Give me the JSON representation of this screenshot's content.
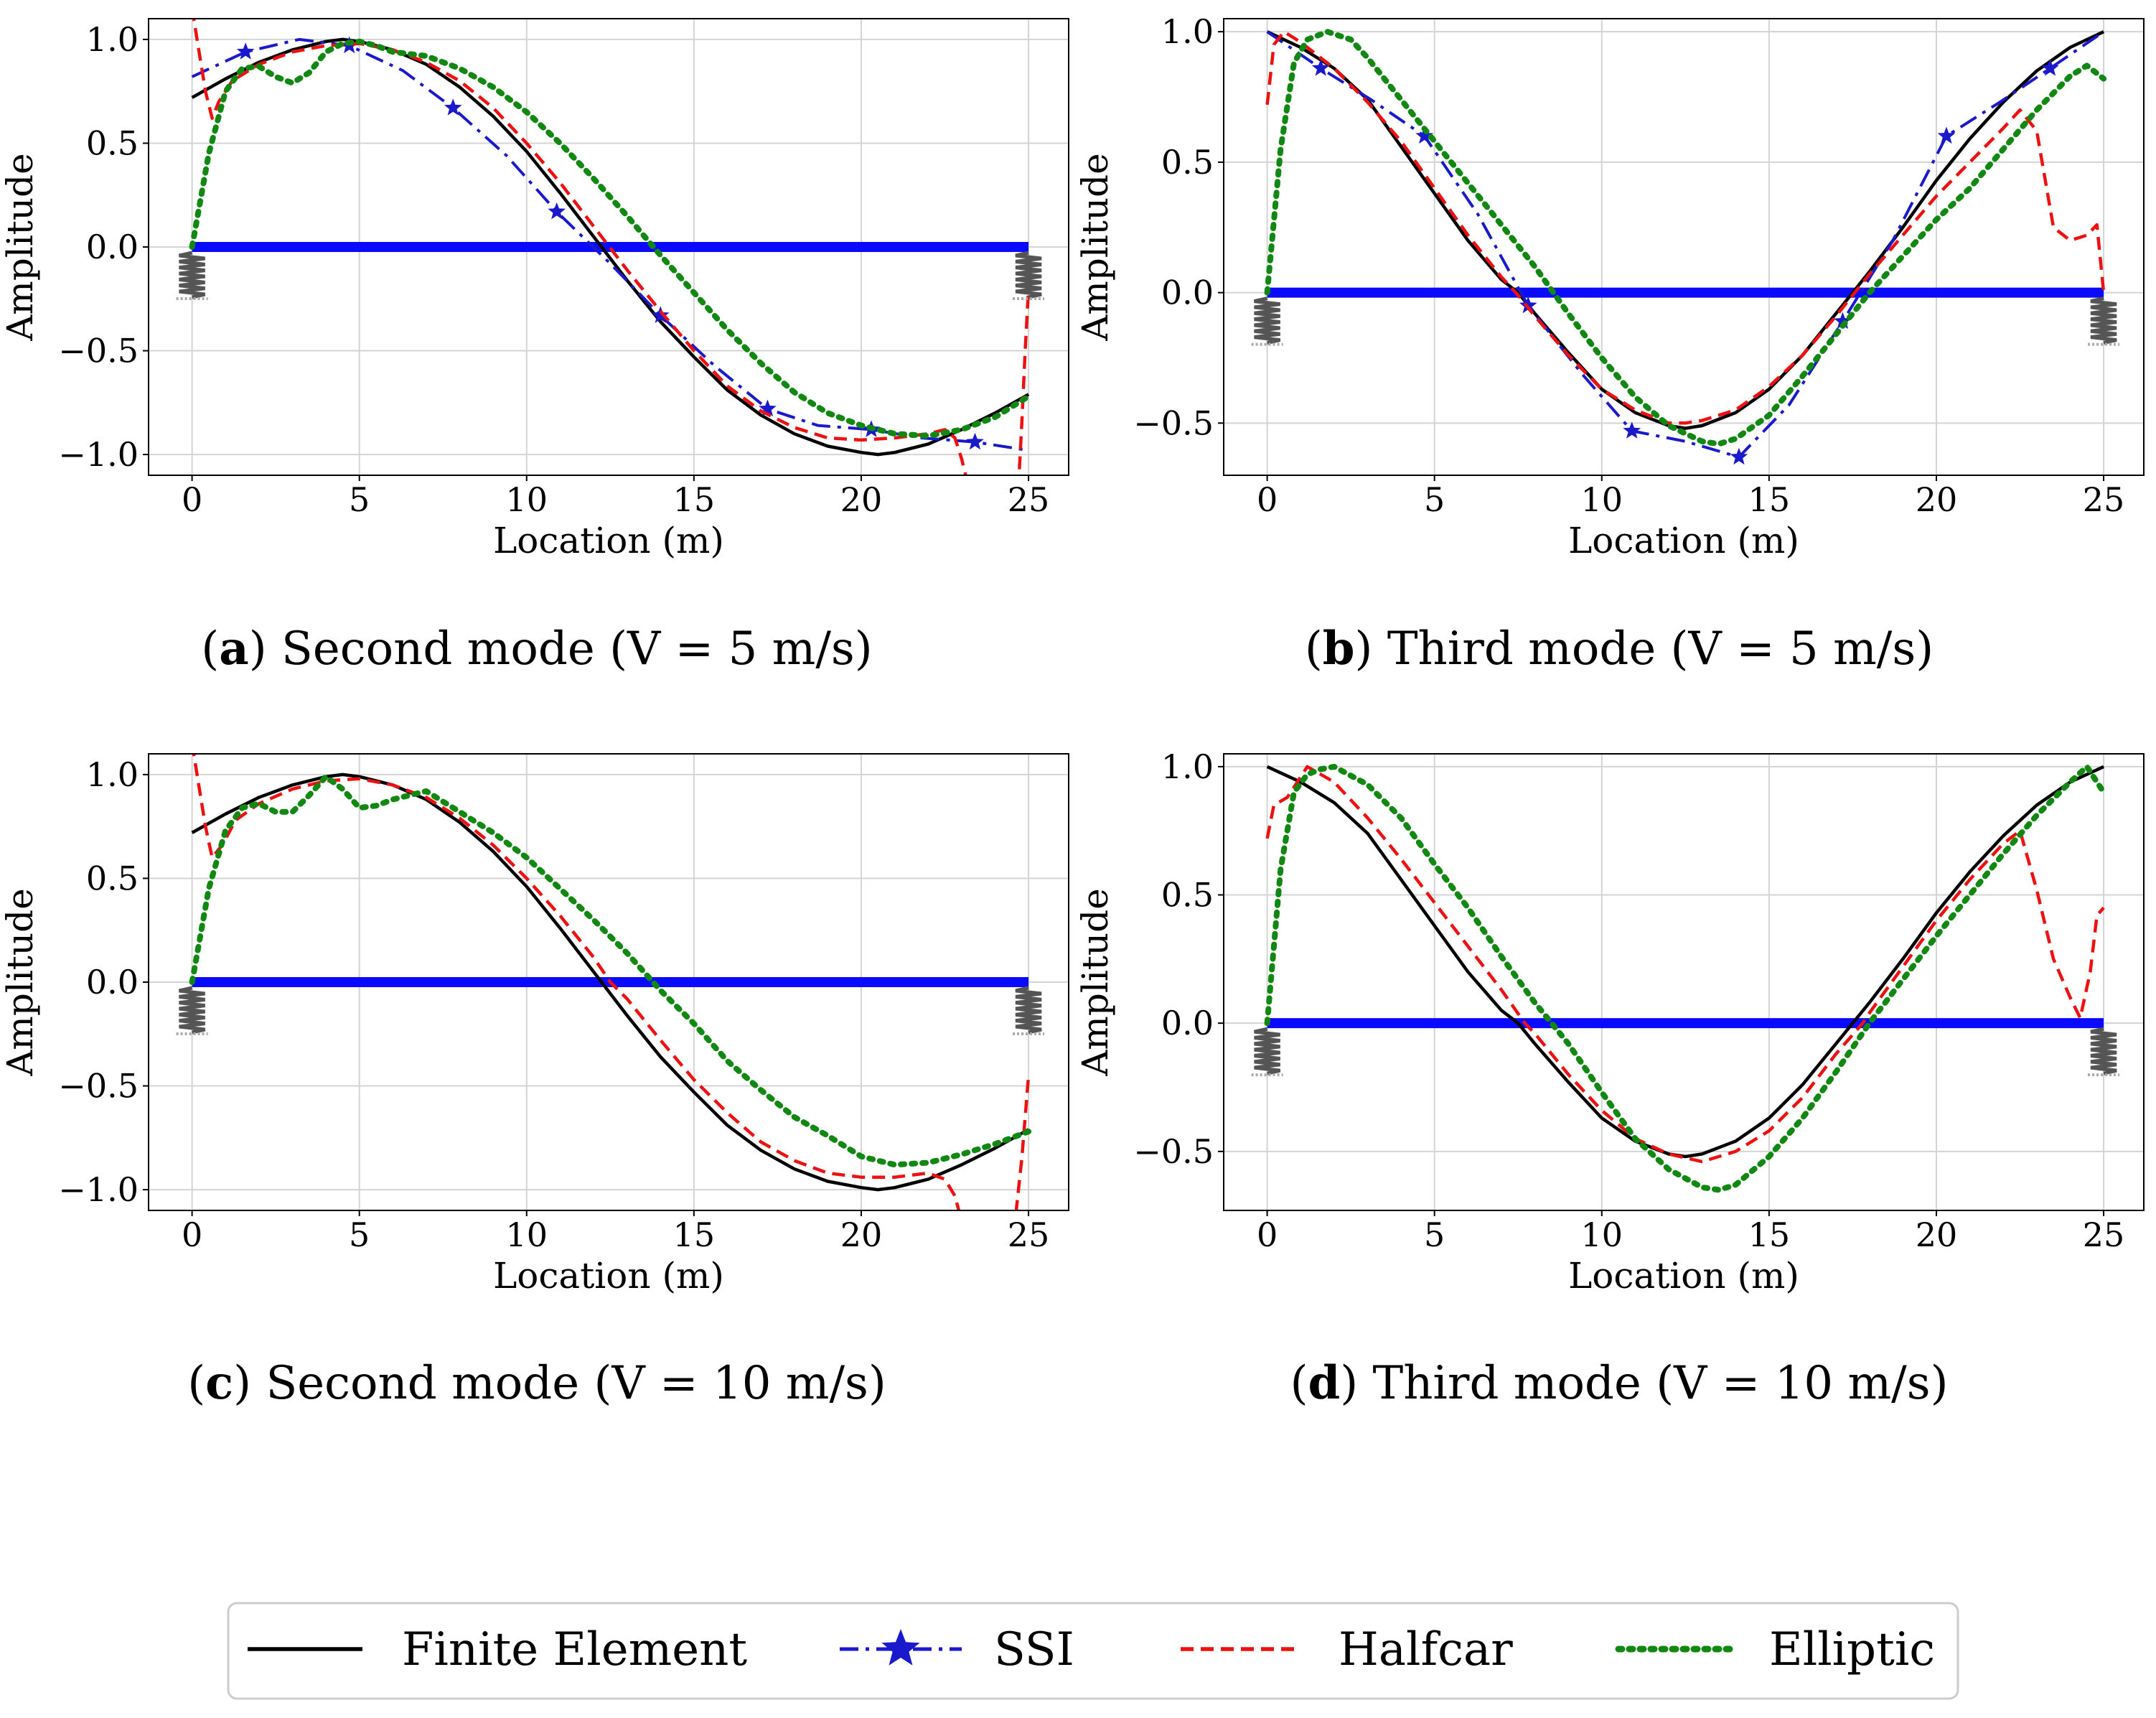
{
  "chart_data": [
    {
      "type": "line",
      "id": "a",
      "caption": {
        "letter": "a",
        "text": " Second mode (V = 5 m/s)"
      },
      "xlabel": "Location (m)",
      "ylabel": "Amplitude",
      "xlim": [
        -1.3,
        26.2
      ],
      "ylim": [
        -1.1,
        1.1
      ],
      "xticks": [
        0,
        5,
        10,
        15,
        20,
        25
      ],
      "yticks": [
        -1.0,
        -0.5,
        0.0,
        0.5,
        1.0
      ],
      "ytick_labels": [
        "−1.0",
        "−0.5",
        "0.0",
        "0.5",
        "1.0"
      ],
      "grid": true,
      "beam": {
        "y": 0.0,
        "x_start": 0,
        "x_end": 25
      },
      "series": [
        {
          "name": "Finite Element",
          "x": [
            0,
            1,
            2,
            3,
            4,
            4.5,
            5,
            6,
            7,
            8,
            9,
            10,
            11,
            12,
            13,
            14,
            15,
            16,
            17,
            18,
            19,
            20,
            20.5,
            21,
            22,
            23,
            24,
            25
          ],
          "y": [
            0.72,
            0.81,
            0.89,
            0.95,
            0.99,
            1.0,
            0.99,
            0.95,
            0.88,
            0.77,
            0.63,
            0.46,
            0.26,
            0.05,
            -0.16,
            -0.36,
            -0.53,
            -0.69,
            -0.81,
            -0.9,
            -0.96,
            -0.99,
            -1.0,
            -0.99,
            -0.95,
            -0.88,
            -0.8,
            -0.71
          ]
        },
        {
          "name": "SSI",
          "x": [
            0,
            1.6,
            3.2,
            4.7,
            6.3,
            7.8,
            9.4,
            10.9,
            12.5,
            14.0,
            15.6,
            17.2,
            18.7,
            20.3,
            21.8,
            23.4,
            25
          ],
          "y": [
            0.82,
            0.94,
            1.0,
            0.97,
            0.85,
            0.67,
            0.44,
            0.17,
            -0.08,
            -0.33,
            -0.57,
            -0.78,
            -0.86,
            -0.88,
            -0.92,
            -0.94,
            -0.98
          ],
          "markers": [
            false,
            true,
            false,
            true,
            false,
            true,
            false,
            true,
            false,
            true,
            false,
            true,
            false,
            true,
            false,
            true,
            false
          ]
        },
        {
          "name": "Halfcar",
          "x": [
            0,
            0.2,
            0.4,
            0.6,
            0.8,
            1.2,
            2,
            3,
            4,
            5,
            6,
            7,
            8,
            9,
            10,
            11,
            12,
            13,
            14,
            15,
            16,
            17,
            18,
            19,
            20,
            21,
            22,
            22.5,
            22.8,
            23.0,
            23.2,
            24.7,
            24.8,
            24.9,
            25.0
          ],
          "y": [
            1.15,
            0.95,
            0.75,
            0.62,
            0.7,
            0.8,
            0.88,
            0.94,
            0.97,
            0.98,
            0.95,
            0.89,
            0.8,
            0.67,
            0.5,
            0.31,
            0.1,
            -0.11,
            -0.31,
            -0.5,
            -0.67,
            -0.79,
            -0.87,
            -0.92,
            -0.93,
            -0.92,
            -0.9,
            -0.88,
            -0.92,
            -1.02,
            -1.15,
            -1.15,
            -0.85,
            -0.5,
            -0.2
          ]
        },
        {
          "name": "Elliptic",
          "x": [
            0,
            0.5,
            1,
            1.5,
            2,
            2.5,
            3,
            3.5,
            4,
            4.5,
            5,
            5.5,
            6,
            7,
            8,
            9,
            10,
            11,
            12,
            13,
            14,
            15,
            16,
            17,
            18,
            19,
            20,
            21,
            22,
            23,
            24,
            25
          ],
          "y": [
            0.0,
            0.45,
            0.75,
            0.86,
            0.87,
            0.82,
            0.79,
            0.84,
            0.94,
            0.98,
            0.99,
            0.97,
            0.94,
            0.92,
            0.86,
            0.77,
            0.65,
            0.5,
            0.33,
            0.15,
            -0.04,
            -0.22,
            -0.4,
            -0.56,
            -0.7,
            -0.8,
            -0.86,
            -0.9,
            -0.91,
            -0.88,
            -0.82,
            -0.72
          ]
        }
      ]
    },
    {
      "type": "line",
      "id": "b",
      "caption": {
        "letter": "b",
        "text": " Third mode (V = 5 m/s)"
      },
      "xlabel": "Location (m)",
      "ylabel": "Amplitude",
      "xlim": [
        -1.3,
        26.2
      ],
      "ylim": [
        -0.7,
        1.05
      ],
      "xticks": [
        0,
        5,
        10,
        15,
        20,
        25
      ],
      "yticks": [
        -0.5,
        0.0,
        0.5,
        1.0
      ],
      "ytick_labels": [
        "−0.5",
        "0.0",
        "0.5",
        "1.0"
      ],
      "grid": true,
      "beam": {
        "y": 0.0,
        "x_start": 0,
        "x_end": 25
      },
      "series": [
        {
          "name": "Finite Element",
          "x": [
            0,
            1,
            2,
            3,
            4,
            5,
            6,
            7,
            7.5,
            8,
            9,
            10,
            11,
            12,
            12.5,
            13,
            14,
            15,
            16,
            17,
            17.5,
            18,
            19,
            20,
            21,
            22,
            23,
            24,
            25
          ],
          "y": [
            1.0,
            0.94,
            0.86,
            0.74,
            0.56,
            0.38,
            0.2,
            0.05,
            0.0,
            -0.08,
            -0.23,
            -0.37,
            -0.46,
            -0.51,
            -0.52,
            -0.51,
            -0.46,
            -0.37,
            -0.24,
            -0.08,
            0.0,
            0.08,
            0.25,
            0.43,
            0.59,
            0.73,
            0.85,
            0.94,
            1.0
          ]
        },
        {
          "name": "SSI",
          "x": [
            0,
            1.6,
            3.1,
            4.7,
            6.3,
            7.8,
            9.4,
            10.9,
            12.5,
            14.1,
            15.6,
            17.2,
            18.7,
            20.3,
            21.9,
            23.4,
            25
          ],
          "y": [
            1.0,
            0.86,
            0.74,
            0.6,
            0.3,
            -0.05,
            -0.31,
            -0.53,
            -0.57,
            -0.63,
            -0.43,
            -0.11,
            0.2,
            0.6,
            0.73,
            0.86,
            1.0
          ],
          "markers": [
            false,
            true,
            false,
            true,
            false,
            true,
            false,
            true,
            false,
            true,
            false,
            true,
            false,
            true,
            false,
            true,
            false
          ]
        },
        {
          "name": "Halfcar",
          "x": [
            0,
            0.2,
            0.5,
            1,
            2,
            3,
            4,
            5,
            6,
            7,
            7.5,
            8,
            9,
            10,
            11,
            12,
            12.5,
            13,
            14,
            15,
            16,
            17,
            17.5,
            18,
            19,
            20,
            21,
            22,
            22.5,
            23,
            23.5,
            24,
            24.5,
            24.8,
            25.0
          ],
          "y": [
            0.72,
            0.95,
            1.0,
            0.96,
            0.86,
            0.73,
            0.58,
            0.4,
            0.22,
            0.06,
            -0.01,
            -0.09,
            -0.24,
            -0.37,
            -0.45,
            -0.5,
            -0.5,
            -0.49,
            -0.45,
            -0.36,
            -0.24,
            -0.09,
            -0.01,
            0.07,
            0.22,
            0.37,
            0.5,
            0.63,
            0.7,
            0.62,
            0.25,
            0.2,
            0.22,
            0.26,
            0.0
          ]
        },
        {
          "name": "Elliptic",
          "x": [
            0,
            0.4,
            0.8,
            1.2,
            1.8,
            2.5,
            3,
            4,
            5,
            6,
            7,
            8,
            9,
            10,
            11,
            12,
            13,
            13.5,
            14,
            15,
            16,
            17,
            18,
            19,
            20,
            21,
            22,
            23,
            24,
            24.5,
            25
          ],
          "y": [
            0.0,
            0.55,
            0.88,
            0.97,
            1.0,
            0.97,
            0.9,
            0.74,
            0.58,
            0.42,
            0.26,
            0.1,
            -0.08,
            -0.25,
            -0.4,
            -0.51,
            -0.57,
            -0.58,
            -0.56,
            -0.47,
            -0.32,
            -0.16,
            0.0,
            0.14,
            0.28,
            0.4,
            0.55,
            0.7,
            0.83,
            0.87,
            0.82
          ]
        }
      ]
    },
    {
      "type": "line",
      "id": "c",
      "caption": {
        "letter": "c",
        "text": " Second mode (V = 10 m/s)"
      },
      "xlabel": "Location (m)",
      "ylabel": "Amplitude",
      "xlim": [
        -1.3,
        26.2
      ],
      "ylim": [
        -1.1,
        1.1
      ],
      "xticks": [
        0,
        5,
        10,
        15,
        20,
        25
      ],
      "yticks": [
        -1.0,
        -0.5,
        0.0,
        0.5,
        1.0
      ],
      "ytick_labels": [
        "−1.0",
        "−0.5",
        "0.0",
        "0.5",
        "1.0"
      ],
      "grid": true,
      "beam": {
        "y": 0.0,
        "x_start": 0,
        "x_end": 25
      },
      "series": [
        {
          "name": "Finite Element",
          "x": [
            0,
            1,
            2,
            3,
            4,
            4.5,
            5,
            6,
            7,
            8,
            9,
            10,
            11,
            12,
            13,
            14,
            15,
            16,
            17,
            18,
            19,
            20,
            20.5,
            21,
            22,
            23,
            24,
            25
          ],
          "y": [
            0.72,
            0.81,
            0.89,
            0.95,
            0.99,
            1.0,
            0.99,
            0.95,
            0.88,
            0.77,
            0.63,
            0.46,
            0.26,
            0.05,
            -0.16,
            -0.36,
            -0.53,
            -0.69,
            -0.81,
            -0.9,
            -0.96,
            -0.99,
            -1.0,
            -0.99,
            -0.95,
            -0.88,
            -0.8,
            -0.71
          ]
        },
        {
          "name": "Halfcar",
          "x": [
            0,
            0.2,
            0.4,
            0.6,
            0.9,
            1.3,
            2,
            3,
            4,
            5,
            6,
            7,
            8,
            9,
            10,
            11,
            12,
            12.5,
            13,
            14,
            15,
            16,
            17,
            18,
            19,
            20,
            21,
            22,
            22.5,
            22.8,
            23.0,
            24.6,
            24.8,
            25.0
          ],
          "y": [
            1.15,
            0.95,
            0.75,
            0.6,
            0.66,
            0.78,
            0.86,
            0.93,
            0.97,
            0.98,
            0.95,
            0.89,
            0.79,
            0.66,
            0.5,
            0.32,
            0.12,
            0.0,
            -0.08,
            -0.28,
            -0.47,
            -0.63,
            -0.77,
            -0.86,
            -0.92,
            -0.94,
            -0.94,
            -0.92,
            -0.95,
            -1.03,
            -1.15,
            -1.15,
            -0.85,
            -0.45
          ]
        },
        {
          "name": "Elliptic",
          "x": [
            0,
            0.5,
            1,
            1.5,
            2,
            2.5,
            3,
            3.5,
            4,
            4.5,
            5,
            5.5,
            6,
            7,
            8,
            9,
            10,
            11,
            12,
            13,
            14,
            15,
            16,
            17,
            18,
            19,
            20,
            21,
            22,
            23,
            24,
            25
          ],
          "y": [
            0.0,
            0.45,
            0.73,
            0.84,
            0.86,
            0.82,
            0.82,
            0.9,
            0.99,
            0.93,
            0.84,
            0.85,
            0.88,
            0.92,
            0.82,
            0.72,
            0.6,
            0.45,
            0.3,
            0.14,
            -0.04,
            -0.2,
            -0.38,
            -0.52,
            -0.65,
            -0.74,
            -0.84,
            -0.88,
            -0.87,
            -0.83,
            -0.78,
            -0.72
          ]
        }
      ]
    },
    {
      "type": "line",
      "id": "d",
      "caption": {
        "letter": "d",
        "text": " Third mode (V = 10 m/s)"
      },
      "xlabel": "Location (m)",
      "ylabel": "Amplitude",
      "xlim": [
        -1.3,
        26.2
      ],
      "ylim": [
        -0.73,
        1.05
      ],
      "xticks": [
        0,
        5,
        10,
        15,
        20,
        25
      ],
      "yticks": [
        -0.5,
        0.0,
        0.5,
        1.0
      ],
      "ytick_labels": [
        "−0.5",
        "0.0",
        "0.5",
        "1.0"
      ],
      "grid": true,
      "beam": {
        "y": 0.0,
        "x_start": 0,
        "x_end": 25
      },
      "series": [
        {
          "name": "Finite Element",
          "x": [
            0,
            1,
            2,
            3,
            4,
            5,
            6,
            7,
            7.5,
            8,
            9,
            10,
            11,
            12,
            12.5,
            13,
            14,
            15,
            16,
            17,
            17.5,
            18,
            19,
            20,
            21,
            22,
            23,
            24,
            25
          ],
          "y": [
            1.0,
            0.94,
            0.86,
            0.74,
            0.56,
            0.38,
            0.2,
            0.05,
            0.0,
            -0.08,
            -0.23,
            -0.37,
            -0.46,
            -0.51,
            -0.52,
            -0.51,
            -0.46,
            -0.37,
            -0.24,
            -0.08,
            0.0,
            0.08,
            0.25,
            0.43,
            0.59,
            0.73,
            0.85,
            0.94,
            1.0
          ]
        },
        {
          "name": "Halfcar",
          "x": [
            0,
            0.2,
            0.6,
            1.2,
            2,
            3,
            4,
            5,
            6,
            7,
            7.7,
            8,
            9,
            10,
            11,
            12,
            13,
            14,
            15,
            16,
            17,
            17.8,
            18,
            19,
            20,
            21,
            22,
            22.5,
            23,
            23.5,
            24,
            24.3,
            24.6,
            24.8,
            25.0
          ],
          "y": [
            0.72,
            0.85,
            0.88,
            1.0,
            0.94,
            0.8,
            0.64,
            0.47,
            0.3,
            0.13,
            0.0,
            -0.04,
            -0.2,
            -0.34,
            -0.45,
            -0.51,
            -0.54,
            -0.5,
            -0.42,
            -0.29,
            -0.12,
            0.0,
            0.04,
            0.22,
            0.4,
            0.56,
            0.7,
            0.75,
            0.52,
            0.25,
            0.1,
            0.02,
            0.2,
            0.42,
            0.45
          ]
        },
        {
          "name": "Elliptic",
          "x": [
            0,
            0.4,
            0.8,
            1.2,
            1.6,
            2,
            3,
            4,
            5,
            6,
            7,
            8,
            8.5,
            9,
            10,
            11,
            12,
            13,
            13.5,
            14,
            15,
            16,
            17,
            18,
            19,
            20,
            21,
            22,
            23,
            24,
            24.5,
            25
          ],
          "y": [
            0.0,
            0.6,
            0.9,
            0.97,
            0.99,
            1.0,
            0.93,
            0.8,
            0.62,
            0.45,
            0.26,
            0.08,
            0.0,
            -0.08,
            -0.27,
            -0.45,
            -0.57,
            -0.64,
            -0.65,
            -0.63,
            -0.52,
            -0.37,
            -0.19,
            0.0,
            0.17,
            0.34,
            0.5,
            0.66,
            0.81,
            0.94,
            1.0,
            0.9
          ]
        }
      ]
    }
  ],
  "legend": [
    {
      "name": "Finite Element",
      "label": "Finite Element"
    },
    {
      "name": "SSI",
      "label": "SSI"
    },
    {
      "name": "Halfcar",
      "label": "Halfcar"
    },
    {
      "name": "Elliptic",
      "label": "Elliptic"
    }
  ],
  "colors": {
    "Finite Element": "#000000",
    "SSI": "#1a1acc",
    "Halfcar": "#ee1111",
    "Elliptic": "#118811",
    "beam": "#0a0aff",
    "spring": "#555555",
    "grid": "#d4d4d4"
  }
}
